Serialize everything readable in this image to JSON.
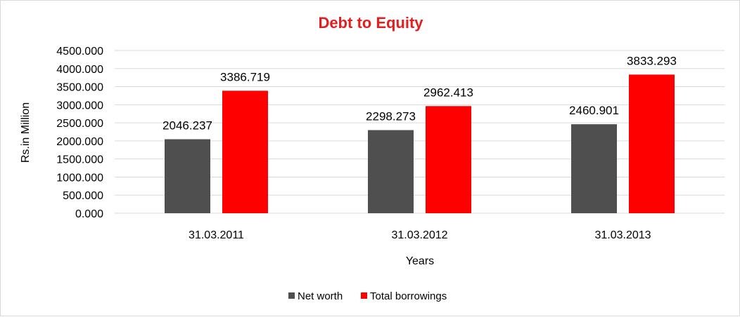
{
  "chart_data": {
    "type": "bar",
    "title": "Debt to Equity",
    "xlabel": "Years",
    "ylabel": "Rs.in Million",
    "categories": [
      "31.03.2011",
      "31.03.2012",
      "31.03.2013"
    ],
    "series": [
      {
        "name": "Net worth",
        "values": [
          2046.237,
          2298.273,
          2460.901
        ],
        "labels": [
          "2046.237",
          "2298.273",
          "2460.901"
        ],
        "color": "#4f4f4f"
      },
      {
        "name": "Total borrowings",
        "values": [
          3386.719,
          2962.413,
          3833.293
        ],
        "labels": [
          "3386.719",
          "2962.413",
          "3833.293"
        ],
        "color": "#ff0000"
      }
    ],
    "ylim": [
      0,
      4500
    ],
    "yticks": [
      "0.000",
      "500.000",
      "1000.000",
      "1500.000",
      "2000.000",
      "2500.000",
      "3000.000",
      "3500.000",
      "4000.000",
      "4500.000"
    ],
    "grid": true,
    "legend_position": "bottom",
    "title_color": "#e41e1e"
  }
}
